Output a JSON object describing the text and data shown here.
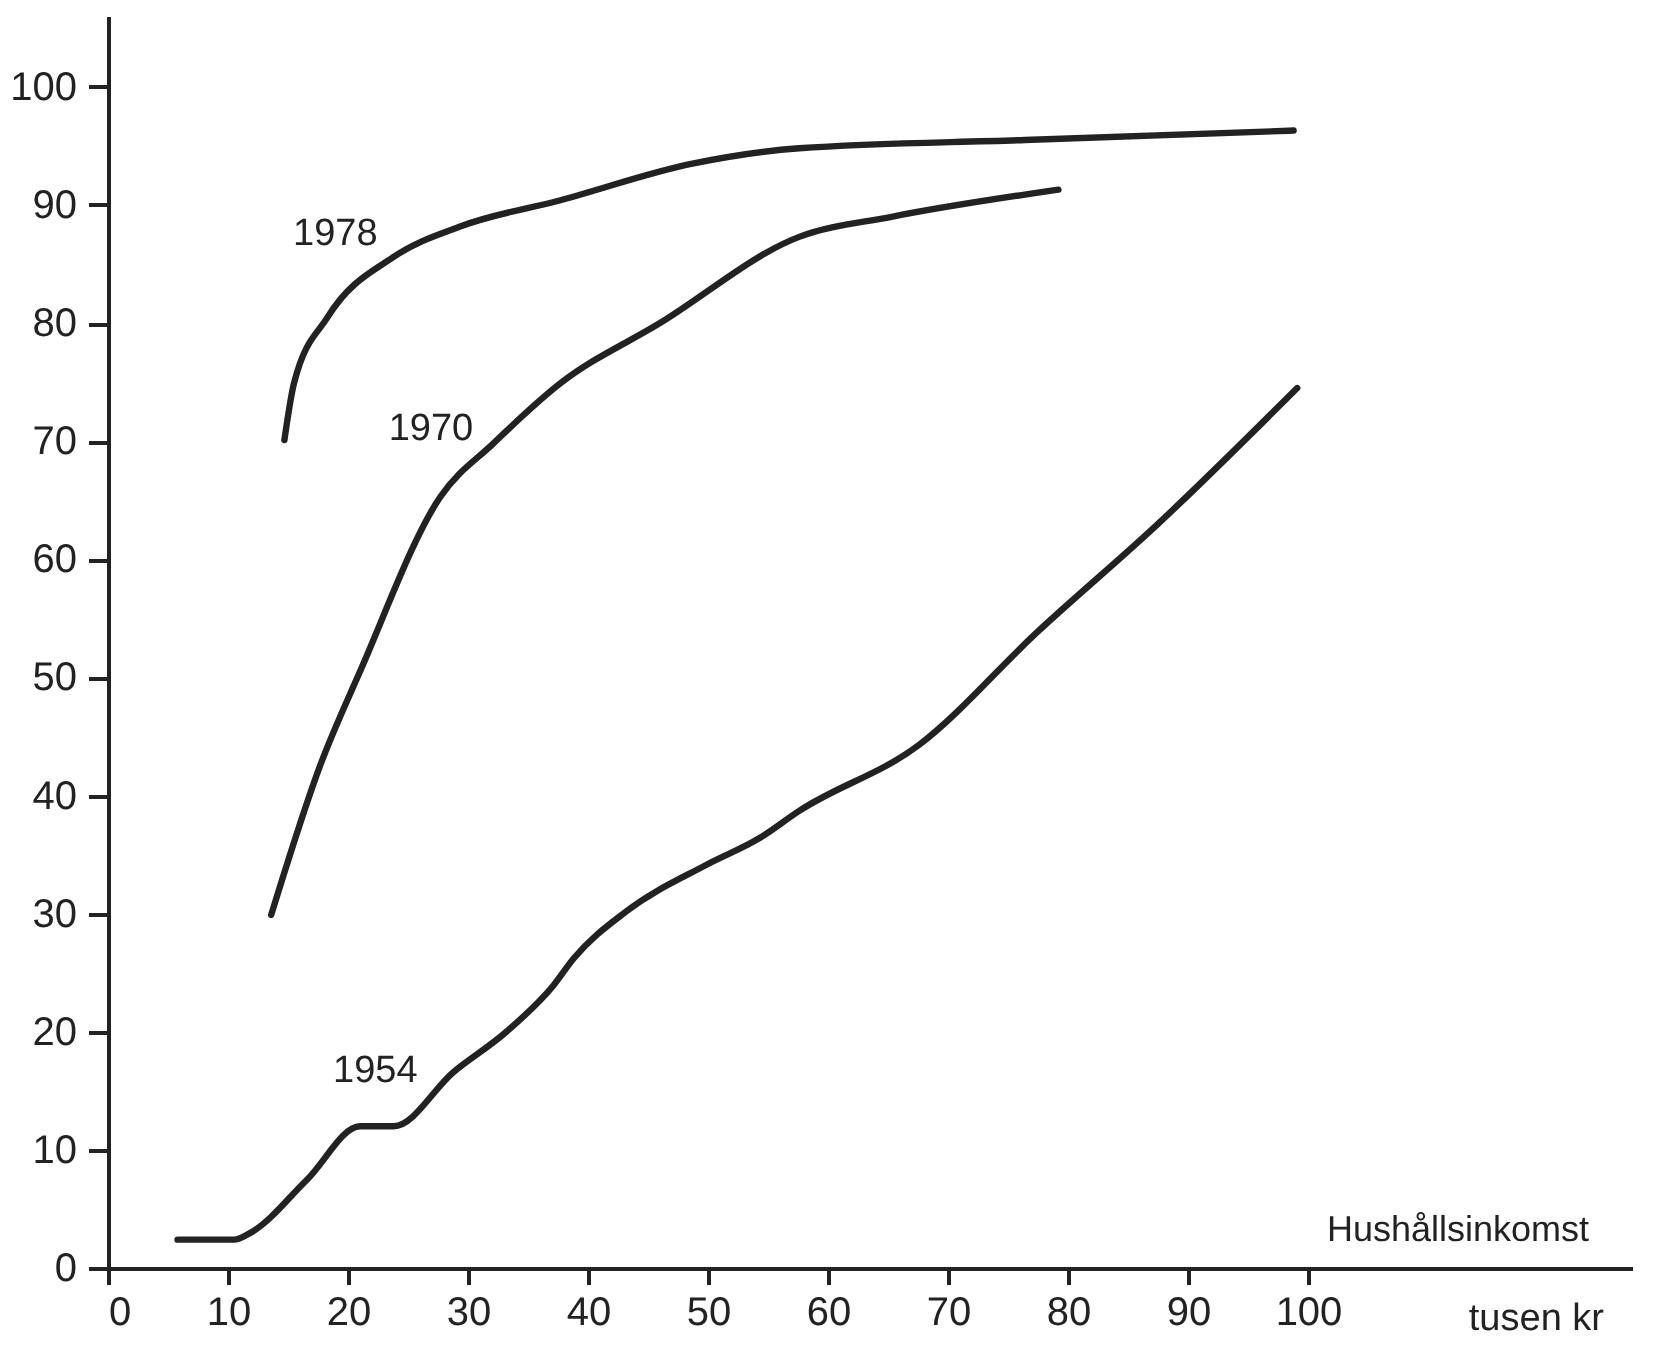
{
  "chart_data": {
    "type": "line",
    "xlabel": "Hushållsinkomst",
    "annotations": [
      "tusen kr"
    ],
    "xlim": [
      0,
      127
    ],
    "ylim": [
      0,
      106
    ],
    "xticks": [
      0,
      10,
      20,
      30,
      40,
      50,
      60,
      70,
      80,
      90,
      100
    ],
    "yticks": [
      0,
      10,
      20,
      30,
      40,
      50,
      60,
      70,
      80,
      90,
      100
    ],
    "grid": false,
    "marker": "none",
    "line_style": "solid",
    "series": [
      {
        "name": "1978",
        "color": "#222222",
        "x": [
          14.7,
          15.5,
          18.3,
          23.8,
          29.4,
          37.7,
          48.7,
          57.6,
          76.4,
          98.8
        ],
        "values": [
          70.1,
          74.9,
          80.5,
          85.6,
          88.2,
          90.4,
          93.5,
          94.8,
          95.5,
          96.3
        ]
      },
      {
        "name": "1970",
        "color": "#222222",
        "x": [
          13.6,
          17.7,
          21.0,
          27.7,
          32.1,
          37.7,
          46.0,
          57.6,
          65.3,
          79.2
        ],
        "values": [
          29.9,
          42.6,
          50.5,
          65.3,
          69.8,
          74.9,
          80.0,
          87.3,
          89.0,
          91.3
        ]
      },
      {
        "name": "1954",
        "color": "#222222",
        "x": [
          5.8,
          10.5,
          11.9,
          16.6,
          21.0,
          23.8,
          28.8,
          33.2,
          37.1,
          38.8,
          43.2,
          49.8,
          54.3,
          57.6,
          67.6,
          77.5,
          87.5,
          99.1
        ],
        "values": [
          2.4,
          2.4,
          3.0,
          7.5,
          12.0,
          12.0,
          16.6,
          20.0,
          23.9,
          26.2,
          30.2,
          34.1,
          36.4,
          38.7,
          44.3,
          53.9,
          63.0,
          74.5
        ]
      }
    ]
  }
}
